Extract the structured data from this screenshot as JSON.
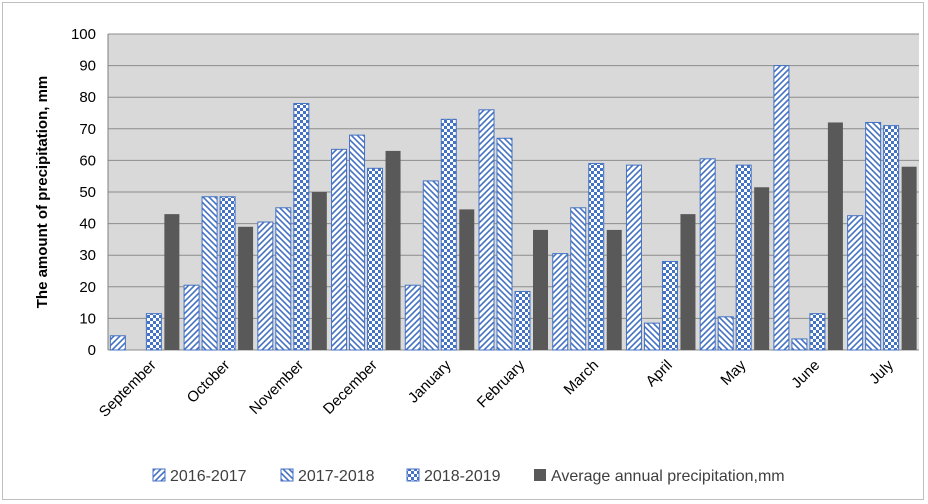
{
  "chart_data": {
    "type": "bar",
    "title": "",
    "xlabel": "",
    "ylabel": "The amount of precipitation, mm",
    "ylim": [
      0,
      100
    ],
    "yticks": [
      0,
      10,
      20,
      30,
      40,
      50,
      60,
      70,
      80,
      90,
      100
    ],
    "grid": true,
    "legend_position": "bottom",
    "plot_background": "#d9d9d9",
    "categories": [
      "September",
      "October",
      "November",
      "December",
      "January",
      "February",
      "March",
      "April",
      "May",
      "June",
      "July"
    ],
    "series": [
      {
        "name": "2016-2017",
        "pattern": "forward-diagonal",
        "color": "#4472c4",
        "values": [
          4.5,
          20.5,
          40.5,
          63.5,
          20.5,
          76,
          30.5,
          58.5,
          60.5,
          90,
          42.5
        ]
      },
      {
        "name": "2017-2018",
        "pattern": "backward-diagonal",
        "color": "#4472c4",
        "values": [
          0,
          48.5,
          45,
          68,
          53.5,
          67,
          45,
          8.5,
          10.5,
          3.5,
          72
        ]
      },
      {
        "name": "2018-2019",
        "pattern": "checker",
        "color": "#4472c4",
        "values": [
          11.5,
          48.5,
          78,
          57.5,
          73,
          18.5,
          59,
          28,
          58.5,
          11.5,
          71
        ]
      },
      {
        "name": "Average annual precipitation,mm",
        "pattern": "solid",
        "color": "#595959",
        "values": [
          43,
          39,
          50,
          63,
          44.5,
          38,
          38,
          43,
          51.5,
          72,
          58
        ]
      }
    ]
  }
}
